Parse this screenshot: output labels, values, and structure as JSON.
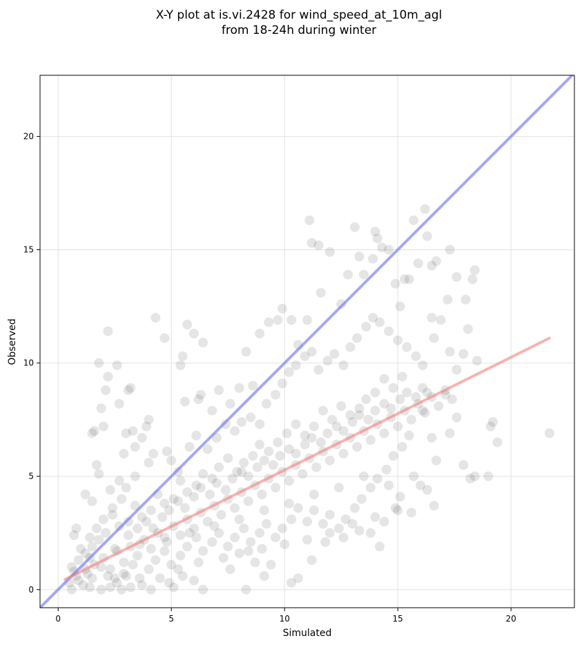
{
  "chart_data": {
    "type": "scatter",
    "title": [
      "X-Y plot at is.vi.2428 for wind_speed_at_10m_agl",
      "from 18-24h during winter"
    ],
    "xlabel": "Simulated",
    "ylabel": "Observed",
    "xlim": [
      -0.8,
      22.8
    ],
    "ylim": [
      -0.8,
      22.7
    ],
    "xticks": [
      0,
      5,
      10,
      15,
      20
    ],
    "yticks": [
      0,
      5,
      10,
      15,
      20
    ],
    "grid": true,
    "point_color": "#333333",
    "lines": [
      {
        "kind": "identity",
        "color": "#6b6bf0",
        "x": [
          -0.8,
          22.8
        ],
        "y": [
          -0.8,
          22.8
        ]
      },
      {
        "kind": "fit",
        "color": "#f08080",
        "x": [
          0.3,
          21.7
        ],
        "y": [
          0.45,
          11.1
        ]
      }
    ],
    "points": [
      [
        2.2,
        11.4
      ],
      [
        4.3,
        12.0
      ],
      [
        4.7,
        11.1
      ],
      [
        5.7,
        11.7
      ],
      [
        6.0,
        11.3
      ],
      [
        6.4,
        10.9
      ],
      [
        1.8,
        10.0
      ],
      [
        2.6,
        9.9
      ],
      [
        2.2,
        9.4
      ],
      [
        2.1,
        8.8
      ],
      [
        3.1,
        8.8
      ],
      [
        3.2,
        8.9
      ],
      [
        2.7,
        8.2
      ],
      [
        1.9,
        8.0
      ],
      [
        2.0,
        7.2
      ],
      [
        1.5,
        6.9
      ],
      [
        1.6,
        7.0
      ],
      [
        3.0,
        6.9
      ],
      [
        3.3,
        7.0
      ],
      [
        3.9,
        7.2
      ],
      [
        4.0,
        7.5
      ],
      [
        3.7,
        6.7
      ],
      [
        3.4,
        6.3
      ],
      [
        2.9,
        6.0
      ],
      [
        1.7,
        5.5
      ],
      [
        1.8,
        5.1
      ],
      [
        5.4,
        9.9
      ],
      [
        5.5,
        10.3
      ],
      [
        6.2,
        8.4
      ],
      [
        6.3,
        8.6
      ],
      [
        5.6,
        8.3
      ],
      [
        6.8,
        7.9
      ],
      [
        7.1,
        8.8
      ],
      [
        7.6,
        8.2
      ],
      [
        8.0,
        8.9
      ],
      [
        8.3,
        10.5
      ],
      [
        8.6,
        9.0
      ],
      [
        8.9,
        11.3
      ],
      [
        9.3,
        11.8
      ],
      [
        9.7,
        11.9
      ],
      [
        9.9,
        12.4
      ],
      [
        10.3,
        11.9
      ],
      [
        10.6,
        10.8
      ],
      [
        11.0,
        11.9
      ],
      [
        11.1,
        16.3
      ],
      [
        11.2,
        15.3
      ],
      [
        11.5,
        15.2
      ],
      [
        11.6,
        13.1
      ],
      [
        12.0,
        14.9
      ],
      [
        12.5,
        12.6
      ],
      [
        12.8,
        13.9
      ],
      [
        13.1,
        16.0
      ],
      [
        13.3,
        14.7
      ],
      [
        13.5,
        13.9
      ],
      [
        13.9,
        14.6
      ],
      [
        14.0,
        15.8
      ],
      [
        14.1,
        15.5
      ],
      [
        14.3,
        15.1
      ],
      [
        14.6,
        15.0
      ],
      [
        14.9,
        13.5
      ],
      [
        15.1,
        12.5
      ],
      [
        15.3,
        13.7
      ],
      [
        15.5,
        13.7
      ],
      [
        15.7,
        16.3
      ],
      [
        15.9,
        14.4
      ],
      [
        16.2,
        16.8
      ],
      [
        16.3,
        15.6
      ],
      [
        16.5,
        14.3
      ],
      [
        16.7,
        14.5
      ],
      [
        17.3,
        15.0
      ],
      [
        17.6,
        13.8
      ],
      [
        18.3,
        13.7
      ],
      [
        18.4,
        14.1
      ],
      [
        17.2,
        12.8
      ],
      [
        18.0,
        12.8
      ],
      [
        18.1,
        11.5
      ],
      [
        16.5,
        12.0
      ],
      [
        16.9,
        11.9
      ],
      [
        16.6,
        11.1
      ],
      [
        17.3,
        10.5
      ],
      [
        17.9,
        10.4
      ],
      [
        18.5,
        10.1
      ],
      [
        17.6,
        9.7
      ],
      [
        17.1,
        8.6
      ],
      [
        16.3,
        8.7
      ],
      [
        16.1,
        7.9
      ],
      [
        17.4,
        8.4
      ],
      [
        17.6,
        7.6
      ],
      [
        17.3,
        6.9
      ],
      [
        17.9,
        5.5
      ],
      [
        18.2,
        4.9
      ],
      [
        18.4,
        5.0
      ],
      [
        19.0,
        5.0
      ],
      [
        19.1,
        7.2
      ],
      [
        19.2,
        7.4
      ],
      [
        19.4,
        6.5
      ],
      [
        21.7,
        6.9
      ],
      [
        16.7,
        5.7
      ],
      [
        16.5,
        6.7
      ],
      [
        16.6,
        3.7
      ],
      [
        16.3,
        4.4
      ],
      [
        15.6,
        3.4
      ],
      [
        15.1,
        4.1
      ],
      [
        14.9,
        3.6
      ],
      [
        14.4,
        3.0
      ],
      [
        14.2,
        1.9
      ],
      [
        13.8,
        2.5
      ],
      [
        13.3,
        2.6
      ],
      [
        12.6,
        2.3
      ],
      [
        11.8,
        2.1
      ],
      [
        11.2,
        1.3
      ],
      [
        10.6,
        0.5
      ],
      [
        10.3,
        0.3
      ],
      [
        9.4,
        1.1
      ],
      [
        9.1,
        0.6
      ],
      [
        8.7,
        1.2
      ],
      [
        8.4,
        1.7
      ],
      [
        7.6,
        0.9
      ],
      [
        8.3,
        0.0
      ],
      [
        6.4,
        0.0
      ],
      [
        6.0,
        0.4
      ],
      [
        5.5,
        0.6
      ],
      [
        5.1,
        0.1
      ],
      [
        4.9,
        0.3
      ],
      [
        4.1,
        0.0
      ],
      [
        3.7,
        0.2
      ],
      [
        3.2,
        0.1
      ],
      [
        2.8,
        0.0
      ],
      [
        2.3,
        0.1
      ],
      [
        1.9,
        0.0
      ],
      [
        1.4,
        0.1
      ],
      [
        1.1,
        0.2
      ],
      [
        0.9,
        0.4
      ],
      [
        0.6,
        0.0
      ],
      [
        0.8,
        2.7
      ],
      [
        0.7,
        2.4
      ],
      [
        1.2,
        4.2
      ],
      [
        1.5,
        3.9
      ],
      [
        2.3,
        4.4
      ],
      [
        2.7,
        4.8
      ],
      [
        3.0,
        4.5
      ],
      [
        3.4,
        5.0
      ],
      [
        4.0,
        5.6
      ],
      [
        4.2,
        6.0
      ],
      [
        4.8,
        6.1
      ],
      [
        5.0,
        5.7
      ],
      [
        5.3,
        5.2
      ],
      [
        5.8,
        6.3
      ],
      [
        6.1,
        6.8
      ],
      [
        6.6,
        6.2
      ],
      [
        7.0,
        6.7
      ],
      [
        7.4,
        7.3
      ],
      [
        7.8,
        7.0
      ],
      [
        8.1,
        7.4
      ],
      [
        8.5,
        7.6
      ],
      [
        8.9,
        7.3
      ],
      [
        9.2,
        8.2
      ],
      [
        9.6,
        8.6
      ],
      [
        9.9,
        9.1
      ],
      [
        10.2,
        9.6
      ],
      [
        10.5,
        9.9
      ],
      [
        10.9,
        10.3
      ],
      [
        11.2,
        10.5
      ],
      [
        11.5,
        9.7
      ],
      [
        11.9,
        10.1
      ],
      [
        12.2,
        10.4
      ],
      [
        12.6,
        9.9
      ],
      [
        12.9,
        10.7
      ],
      [
        13.2,
        11.1
      ],
      [
        13.6,
        11.6
      ],
      [
        13.9,
        12.0
      ],
      [
        14.2,
        11.8
      ],
      [
        14.6,
        11.4
      ],
      [
        15.0,
        11.0
      ],
      [
        15.4,
        10.7
      ],
      [
        15.8,
        10.3
      ],
      [
        16.1,
        9.9
      ],
      [
        15.2,
        9.4
      ],
      [
        14.8,
        8.9
      ],
      [
        14.4,
        9.3
      ],
      [
        14.0,
        8.7
      ],
      [
        13.6,
        8.4
      ],
      [
        13.3,
        8.0
      ],
      [
        12.9,
        7.7
      ],
      [
        12.5,
        8.1
      ],
      [
        12.1,
        7.5
      ],
      [
        11.7,
        7.9
      ],
      [
        11.3,
        7.2
      ],
      [
        10.9,
        6.8
      ],
      [
        10.5,
        7.3
      ],
      [
        10.1,
        6.9
      ],
      [
        9.7,
        6.5
      ],
      [
        9.3,
        6.1
      ],
      [
        8.9,
        6.4
      ],
      [
        8.6,
        5.9
      ],
      [
        8.2,
        5.6
      ],
      [
        7.9,
        5.2
      ],
      [
        7.5,
        5.8
      ],
      [
        7.1,
        5.4
      ],
      [
        6.8,
        4.9
      ],
      [
        6.4,
        5.1
      ],
      [
        6.1,
        4.6
      ],
      [
        5.7,
        4.3
      ],
      [
        5.4,
        4.8
      ],
      [
        5.1,
        4.0
      ],
      [
        4.7,
        3.8
      ],
      [
        4.4,
        4.2
      ],
      [
        4.1,
        3.5
      ],
      [
        3.7,
        3.2
      ],
      [
        3.4,
        3.7
      ],
      [
        3.1,
        3.0
      ],
      [
        2.7,
        2.8
      ],
      [
        2.4,
        3.3
      ],
      [
        2.1,
        2.5
      ],
      [
        1.8,
        2.2
      ],
      [
        1.5,
        1.9
      ],
      [
        1.2,
        1.6
      ],
      [
        0.9,
        1.3
      ],
      [
        0.6,
        1.0
      ],
      [
        1.3,
        0.7
      ],
      [
        1.6,
        1.1
      ],
      [
        2.0,
        1.4
      ],
      [
        2.3,
        0.9
      ],
      [
        2.6,
        1.7
      ],
      [
        2.9,
        1.2
      ],
      [
        3.2,
        1.9
      ],
      [
        3.5,
        1.5
      ],
      [
        3.8,
        2.2
      ],
      [
        4.1,
        1.8
      ],
      [
        4.4,
        2.5
      ],
      [
        4.8,
        2.1
      ],
      [
        5.1,
        2.8
      ],
      [
        5.4,
        2.4
      ],
      [
        5.7,
        3.1
      ],
      [
        6.0,
        2.7
      ],
      [
        6.3,
        3.4
      ],
      [
        6.6,
        3.0
      ],
      [
        6.9,
        3.7
      ],
      [
        7.2,
        3.3
      ],
      [
        7.5,
        4.0
      ],
      [
        7.8,
        3.6
      ],
      [
        8.1,
        4.3
      ],
      [
        8.4,
        3.9
      ],
      [
        8.7,
        4.6
      ],
      [
        9.0,
        4.2
      ],
      [
        9.3,
        4.9
      ],
      [
        9.6,
        4.5
      ],
      [
        9.9,
        5.2
      ],
      [
        10.2,
        4.8
      ],
      [
        10.5,
        5.5
      ],
      [
        10.8,
        5.1
      ],
      [
        11.1,
        5.8
      ],
      [
        11.4,
        5.4
      ],
      [
        11.7,
        6.1
      ],
      [
        12.0,
        5.7
      ],
      [
        12.3,
        6.4
      ],
      [
        12.6,
        6.0
      ],
      [
        12.9,
        6.7
      ],
      [
        13.2,
        6.3
      ],
      [
        13.5,
        7.0
      ],
      [
        13.8,
        6.6
      ],
      [
        14.1,
        7.3
      ],
      [
        14.4,
        6.9
      ],
      [
        14.7,
        7.6
      ],
      [
        15.0,
        7.2
      ],
      [
        15.3,
        7.9
      ],
      [
        15.6,
        7.5
      ],
      [
        15.9,
        8.2
      ],
      [
        16.2,
        7.8
      ],
      [
        16.5,
        8.5
      ],
      [
        16.8,
        8.1
      ],
      [
        17.1,
        8.8
      ],
      [
        15.5,
        6.8
      ],
      [
        15.2,
        6.3
      ],
      [
        14.8,
        5.9
      ],
      [
        14.5,
        5.3
      ],
      [
        14.1,
        4.9
      ],
      [
        13.8,
        4.5
      ],
      [
        13.4,
        4.0
      ],
      [
        13.1,
        3.6
      ],
      [
        12.7,
        3.1
      ],
      [
        12.4,
        2.7
      ],
      [
        12.0,
        3.3
      ],
      [
        11.7,
        2.9
      ],
      [
        11.3,
        3.5
      ],
      [
        11.0,
        3.0
      ],
      [
        10.6,
        3.6
      ],
      [
        10.3,
        3.1
      ],
      [
        9.9,
        2.7
      ],
      [
        9.6,
        2.3
      ],
      [
        9.2,
        2.9
      ],
      [
        8.9,
        2.5
      ],
      [
        8.5,
        2.1
      ],
      [
        8.2,
        2.7
      ],
      [
        7.8,
        2.3
      ],
      [
        7.5,
        1.9
      ],
      [
        7.1,
        2.5
      ],
      [
        6.8,
        2.1
      ],
      [
        6.4,
        1.7
      ],
      [
        6.1,
        2.3
      ],
      [
        5.7,
        1.9
      ],
      [
        5.4,
        1.5
      ],
      [
        5.0,
        1.1
      ],
      [
        4.7,
        1.7
      ],
      [
        4.3,
        1.3
      ],
      [
        4.0,
        0.9
      ],
      [
        3.6,
        0.5
      ],
      [
        3.3,
        1.1
      ],
      [
        2.9,
        0.7
      ],
      [
        2.6,
        0.3
      ],
      [
        2.2,
        0.6
      ],
      [
        1.9,
        1.0
      ],
      [
        1.5,
        0.5
      ],
      [
        1.2,
        0.9
      ],
      [
        0.8,
        0.6
      ],
      [
        0.5,
        0.3
      ],
      [
        1.0,
        1.8
      ],
      [
        1.4,
        2.3
      ],
      [
        1.7,
        2.7
      ],
      [
        2.0,
        3.1
      ],
      [
        2.4,
        3.6
      ],
      [
        2.8,
        4.0
      ],
      [
        3.1,
        2.4
      ],
      [
        3.5,
        2.7
      ],
      [
        3.9,
        3.0
      ],
      [
        4.2,
        2.7
      ],
      [
        4.6,
        3.2
      ],
      [
        4.9,
        3.5
      ],
      [
        5.3,
        3.9
      ],
      [
        5.6,
        3.6
      ],
      [
        6.0,
        4.1
      ],
      [
        6.3,
        4.5
      ],
      [
        6.7,
        4.2
      ],
      [
        7.0,
        4.7
      ],
      [
        7.4,
        4.4
      ],
      [
        7.7,
        4.9
      ],
      [
        8.1,
        5.2
      ],
      [
        8.4,
        5.0
      ],
      [
        8.8,
        5.4
      ],
      [
        9.1,
        5.7
      ],
      [
        9.5,
        5.5
      ],
      [
        9.8,
        5.9
      ],
      [
        10.2,
        6.2
      ],
      [
        10.5,
        6.0
      ],
      [
        10.9,
        6.4
      ],
      [
        11.2,
        6.7
      ],
      [
        11.6,
        6.5
      ],
      [
        11.9,
        6.9
      ],
      [
        12.3,
        7.2
      ],
      [
        12.6,
        7.0
      ],
      [
        13.0,
        7.4
      ],
      [
        13.3,
        7.7
      ],
      [
        13.7,
        7.5
      ],
      [
        14.0,
        7.9
      ],
      [
        14.4,
        8.2
      ],
      [
        14.7,
        8.0
      ],
      [
        15.1,
        8.4
      ],
      [
        15.4,
        8.7
      ],
      [
        15.8,
        8.5
      ],
      [
        16.1,
        8.9
      ],
      [
        3.0,
        0.6
      ],
      [
        2.5,
        0.5
      ],
      [
        4.5,
        0.5
      ],
      [
        5.3,
        0.9
      ],
      [
        6.2,
        1.2
      ],
      [
        7.3,
        1.4
      ],
      [
        8.0,
        1.6
      ],
      [
        9.0,
        1.8
      ],
      [
        10.0,
        2.0
      ],
      [
        11.0,
        2.2
      ],
      [
        12.0,
        2.5
      ],
      [
        13.0,
        2.9
      ],
      [
        14.0,
        3.2
      ],
      [
        15.0,
        3.5
      ],
      [
        16.0,
        4.6
      ],
      [
        15.7,
        5.0
      ],
      [
        14.6,
        4.6
      ],
      [
        13.5,
        5.0
      ],
      [
        12.4,
        4.5
      ],
      [
        11.3,
        4.2
      ],
      [
        10.2,
        3.8
      ],
      [
        9.1,
        3.5
      ],
      [
        8.0,
        3.1
      ],
      [
        6.9,
        2.8
      ],
      [
        5.8,
        2.5
      ],
      [
        4.7,
        2.3
      ],
      [
        3.6,
        2.0
      ],
      [
        2.5,
        1.8
      ],
      [
        1.4,
        1.4
      ],
      [
        0.7,
        0.8
      ]
    ]
  }
}
